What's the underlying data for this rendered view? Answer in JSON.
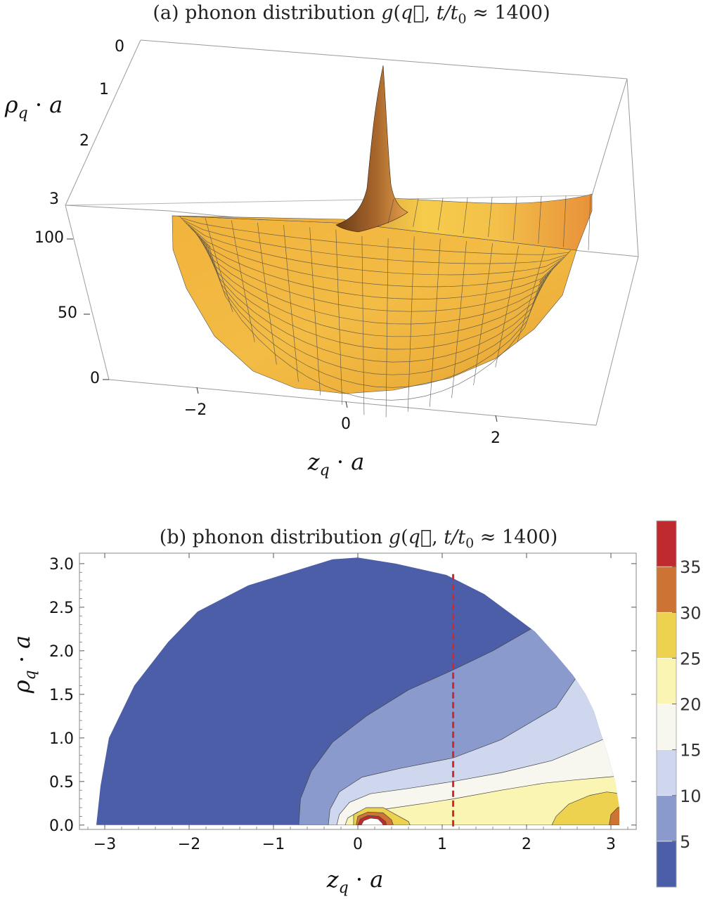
{
  "chart_data": [
    {
      "id": "a",
      "type": "surface3d",
      "title": "(a) phonon distribution g(q⃗, t/t₀ ≈ 1400)",
      "xlabel": "z_q · a",
      "ylabel": "ρ_q · a",
      "zlabel": "",
      "x_ticks": [
        "−2",
        "0",
        "2"
      ],
      "y_ticks": [
        "0",
        "1",
        "2",
        "3"
      ],
      "z_ticks": [
        "0",
        "50",
        "100"
      ],
      "xlim": [
        -3.14159,
        3.14159
      ],
      "ylim": [
        0,
        3.14159
      ],
      "zlim": [
        0,
        130
      ],
      "surface_color": "#f0b23a",
      "peak_location": {
        "z": 0.25,
        "rho": 0.0
      },
      "boundary": "z^2 + rho^2 <= pi^2",
      "grid_on": true
    },
    {
      "id": "b",
      "type": "contour",
      "title": "(b) phonon distribution g(q⃗, t/t₀ ≈ 1400)",
      "xlabel": "z_q · a",
      "ylabel": "ρ_q · a",
      "xlim": [
        -3.3,
        3.3
      ],
      "ylim": [
        -0.05,
        3.12
      ],
      "x_ticks": [
        "−3",
        "−2",
        "−1",
        "0",
        "1",
        "2",
        "3"
      ],
      "x_tick_values": [
        -3,
        -2,
        -1,
        0,
        1,
        2,
        3
      ],
      "y_ticks": [
        "0.0",
        "0.5",
        "1.0",
        "1.5",
        "2.0",
        "2.5",
        "3.0"
      ],
      "y_tick_values": [
        0,
        0.5,
        1.0,
        1.5,
        2.0,
        2.5,
        3.0
      ],
      "dashed_line": {
        "orientation": "vertical",
        "x": 1.13,
        "color": "#d62728"
      },
      "colorbar": {
        "levels": [
          0,
          5,
          10,
          15,
          20,
          25,
          30,
          35,
          40
        ],
        "tick_labels": [
          "5",
          "10",
          "15",
          "20",
          "25",
          "30",
          "35"
        ],
        "tick_values": [
          5,
          10,
          15,
          20,
          25,
          30,
          35
        ],
        "colors": [
          "#4d5ea8",
          "#8b9acd",
          "#cfd7ee",
          "#f7f7ef",
          "#faf5b2",
          "#ecd24e",
          "#cd7434",
          "#be2a2e"
        ]
      },
      "outline_boundary": [
        [
          -3.1,
          0.0
        ],
        [
          -3.05,
          0.45
        ],
        [
          -2.95,
          1.0
        ],
        [
          -2.65,
          1.6
        ],
        [
          -2.25,
          2.1
        ],
        [
          -1.9,
          2.45
        ],
        [
          -1.3,
          2.75
        ],
        [
          -0.8,
          2.9
        ],
        [
          -0.3,
          3.05
        ],
        [
          0.0,
          3.07
        ],
        [
          0.45,
          3.0
        ],
        [
          1.05,
          2.87
        ],
        [
          1.5,
          2.65
        ],
        [
          1.85,
          2.4
        ],
        [
          2.1,
          2.22
        ],
        [
          2.35,
          1.95
        ],
        [
          2.55,
          1.72
        ],
        [
          2.7,
          1.5
        ],
        [
          2.8,
          1.3
        ],
        [
          2.88,
          1.05
        ],
        [
          2.95,
          0.85
        ],
        [
          3.05,
          0.5
        ],
        [
          3.1,
          0.2
        ],
        [
          3.1,
          0.0
        ]
      ]
    }
  ]
}
